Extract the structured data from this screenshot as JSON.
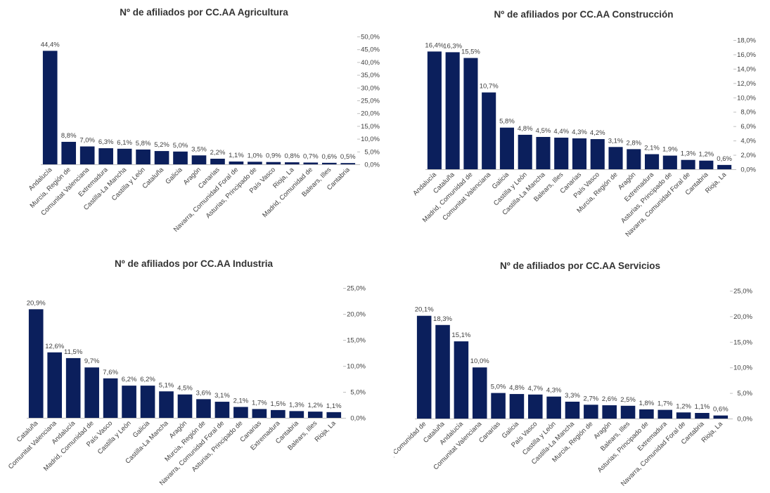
{
  "colors": {
    "bar": "#0B1F5C",
    "axis": "#BFBFBF",
    "text": "#404040",
    "title": "#333333"
  },
  "chart_data": [
    {
      "type": "bar",
      "title": "Nº de afiliados por CC.AA  Agricultura",
      "ylim": [
        0,
        50
      ],
      "y_ticks": [
        "0,0%",
        "5,0%",
        "10,0%",
        "15,0%",
        "20,0%",
        "25,0%",
        "30,0%",
        "35,0%",
        "40,0%",
        "45,0%",
        "50,0%"
      ],
      "y_axis_position": "right",
      "grid": false,
      "categories": [
        "Andalucía",
        "Murcia, Región de",
        "Comunitat Valenciana",
        "Extremadura",
        "Castilla-La Mancha",
        "Castilla y León",
        "Cataluña",
        "Galicia",
        "Aragón",
        "Canarias",
        "Navarra, Comunidad Foral de",
        "Asturias, Principado de",
        "País Vasco",
        "Rioja, La",
        "Madrid, Comunidad de",
        "Balears, Illes",
        "Cantabria"
      ],
      "values": [
        44.4,
        8.8,
        7.0,
        6.3,
        6.1,
        5.8,
        5.2,
        5.0,
        3.5,
        2.2,
        1.1,
        1.0,
        0.9,
        0.8,
        0.7,
        0.6,
        0.5
      ],
      "labels": [
        "44,4%",
        "8,8%",
        "7,0%",
        "6,3%",
        "6,1%",
        "5,8%",
        "5,2%",
        "5,0%",
        "3,5%",
        "2,2%",
        "1,1%",
        "1,0%",
        "0,9%",
        "0,8%",
        "0,7%",
        "0,6%",
        "0,5%"
      ]
    },
    {
      "type": "bar",
      "title": "Nº de afiliados por CC.AA  Construcción",
      "ylim": [
        0,
        18
      ],
      "y_ticks": [
        "0,0%",
        "2,0%",
        "4,0%",
        "6,0%",
        "8,0%",
        "10,0%",
        "12,0%",
        "14,0%",
        "16,0%",
        "18,0%"
      ],
      "y_axis_position": "right",
      "grid": false,
      "categories": [
        "Andalucía",
        "Cataluña",
        "Madrid, Comunidad de",
        "Comunitat Valenciana",
        "Galicia",
        "Castilla y León",
        "Castilla-La Mancha",
        "Balears, Illes",
        "Canarias",
        "País Vasco",
        "Murcia, Región de",
        "Aragón",
        "Extremadura",
        "Asturias, Principado de",
        "Navarra, Comunidad Foral de",
        "Cantabria",
        "Rioja, La"
      ],
      "values": [
        16.4,
        16.3,
        15.5,
        10.7,
        5.8,
        4.8,
        4.5,
        4.4,
        4.3,
        4.2,
        3.1,
        2.8,
        2.1,
        1.9,
        1.3,
        1.2,
        0.6
      ],
      "labels": [
        "16,4%",
        "16,3%",
        "15,5%",
        "10,7%",
        "5,8%",
        "4,8%",
        "4,5%",
        "4,4%",
        "4,3%",
        "4,2%",
        "3,1%",
        "2,8%",
        "2,1%",
        "1,9%",
        "1,3%",
        "1,2%",
        "0,6%"
      ]
    },
    {
      "type": "bar",
      "title": "Nº de afiliados por CC.AA  Industria",
      "ylim": [
        0,
        25
      ],
      "y_ticks": [
        "0,0%",
        "5,0%",
        "10,0%",
        "15,0%",
        "20,0%",
        "25,0%"
      ],
      "y_axis_position": "right",
      "grid": false,
      "categories": [
        "Cataluña",
        "Comunitat Valenciana",
        "Andalucía",
        "Madrid, Comunidad de",
        "País Vasco",
        "Castilla y León",
        "Galicia",
        "Castilla-La Mancha",
        "Aragón",
        "Murcia, Región de",
        "Navarra, Comunidad Foral de",
        "Asturias, Principado de",
        "Canarias",
        "Extremadura",
        "Cantabria",
        "Balears, Illes",
        "Rioja, La"
      ],
      "values": [
        20.9,
        12.6,
        11.5,
        9.7,
        7.6,
        6.2,
        6.2,
        5.1,
        4.5,
        3.6,
        3.1,
        2.1,
        1.7,
        1.5,
        1.3,
        1.2,
        1.1
      ],
      "labels": [
        "20,9%",
        "12,6%",
        "11,5%",
        "9,7%",
        "7,6%",
        "6,2%",
        "6,2%",
        "5,1%",
        "4,5%",
        "3,6%",
        "3,1%",
        "2,1%",
        "1,7%",
        "1,5%",
        "1,3%",
        "1,2%",
        "1,1%"
      ]
    },
    {
      "type": "bar",
      "title": "Nº de afiliados por CC.AA  Servicios",
      "ylim": [
        0,
        25
      ],
      "y_ticks": [
        "0,0%",
        "5,0%",
        "10,0%",
        "15,0%",
        "20,0%",
        "25,0%"
      ],
      "y_axis_position": "right",
      "grid": false,
      "categories": [
        "Madrid, Comunidad de",
        "Cataluña",
        "Andalucía",
        "Comunitat Valenciana",
        "Canarias",
        "Galicia",
        "País Vasco",
        "Castilla y León",
        "Castilla-La Mancha",
        "Murcia, Región de",
        "Aragón",
        "Balears, Illes",
        "Asturias, Principado de",
        "Extremadura",
        "Navarra, Comunidad Foral de",
        "Cantabria",
        "Rioja, La"
      ],
      "values": [
        20.1,
        18.3,
        15.1,
        10.0,
        5.0,
        4.8,
        4.7,
        4.3,
        3.3,
        2.7,
        2.6,
        2.5,
        1.8,
        1.7,
        1.2,
        1.1,
        0.6
      ],
      "labels": [
        "20,1%",
        "18,3%",
        "15,1%",
        "10,0%",
        "5,0%",
        "4,8%",
        "4,7%",
        "4,3%",
        "3,3%",
        "2,7%",
        "2,6%",
        "2,5%",
        "1,8%",
        "1,7%",
        "1,2%",
        "1,1%",
        "0,6%"
      ]
    }
  ]
}
